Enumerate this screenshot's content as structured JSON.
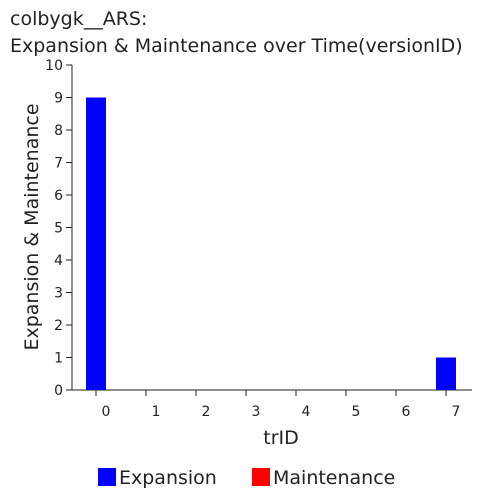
{
  "chart_data": {
    "type": "bar",
    "title_line1": "colbygk__ARS:",
    "title_line2": "Expansion & Maintenance over Time(versionID)",
    "xlabel": "trID",
    "ylabel": "Expansion & Maintenance",
    "categories": [
      "0",
      "1",
      "2",
      "3",
      "4",
      "5",
      "6",
      "7"
    ],
    "series": [
      {
        "name": "Expansion",
        "color": "#0000ff",
        "values": [
          9,
          0,
          0,
          0,
          0,
          0,
          0,
          1
        ]
      },
      {
        "name": "Maintenance",
        "color": "#ff0000",
        "values": [
          0,
          0,
          0,
          0,
          0,
          0,
          0,
          0
        ]
      }
    ],
    "yticks": [
      "0",
      "1",
      "2",
      "3",
      "4",
      "5",
      "6",
      "7",
      "8",
      "9",
      "10"
    ],
    "ylim": [
      0,
      10
    ],
    "grid": false,
    "legend_position": "bottom"
  }
}
